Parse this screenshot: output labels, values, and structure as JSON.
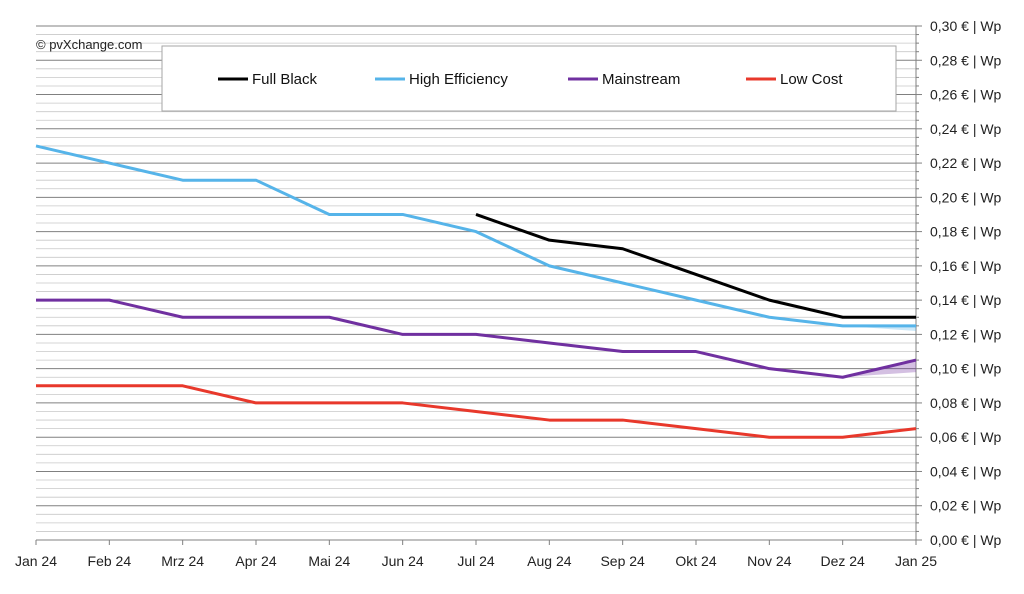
{
  "chart_data": {
    "type": "line",
    "copyright": "© pvXchange.com",
    "categories": [
      "Jan 24",
      "Feb 24",
      "Mrz 24",
      "Apr 24",
      "Mai 24",
      "Jun 24",
      "Jul 24",
      "Aug 24",
      "Sep 24",
      "Okt 24",
      "Nov 24",
      "Dez 24",
      "Jan 25"
    ],
    "y_ticks": [
      "0,00 € | Wp",
      "0,02 € | Wp",
      "0,04 € | Wp",
      "0,06 € | Wp",
      "0,08 € | Wp",
      "0,10 € | Wp",
      "0,12 € | Wp",
      "0,14 € | Wp",
      "0,16 € | Wp",
      "0,18 € | Wp",
      "0,20 € | Wp",
      "0,22 € | Wp",
      "0,24 € | Wp",
      "0,26 € | Wp",
      "0,28 € | Wp",
      "0,30 € | Wp"
    ],
    "ylim": [
      0,
      0.3
    ],
    "y_axis_side": "right",
    "grid": true,
    "legend_position": "top",
    "series": [
      {
        "name": "Full Black",
        "color": "#000000",
        "values": [
          null,
          null,
          null,
          null,
          null,
          null,
          0.19,
          0.175,
          0.17,
          0.155,
          0.14,
          0.13,
          0.13
        ]
      },
      {
        "name": "High Efficiency",
        "color": "#56b4e9",
        "values": [
          0.23,
          0.22,
          0.21,
          0.21,
          0.19,
          0.19,
          0.18,
          0.16,
          0.15,
          0.14,
          0.13,
          0.125,
          0.125
        ],
        "range_last": [
          0.122,
          0.125
        ]
      },
      {
        "name": "Mainstream",
        "color": "#7030a0",
        "values": [
          0.14,
          0.14,
          0.13,
          0.13,
          0.13,
          0.12,
          0.12,
          0.115,
          0.11,
          0.11,
          0.1,
          0.095,
          0.105
        ],
        "range_last": [
          0.098,
          0.105
        ]
      },
      {
        "name": "Low Cost",
        "color": "#e8382b",
        "values": [
          0.09,
          0.09,
          0.09,
          0.08,
          0.08,
          0.08,
          0.075,
          0.07,
          0.07,
          0.065,
          0.06,
          0.06,
          0.065
        ]
      }
    ]
  }
}
